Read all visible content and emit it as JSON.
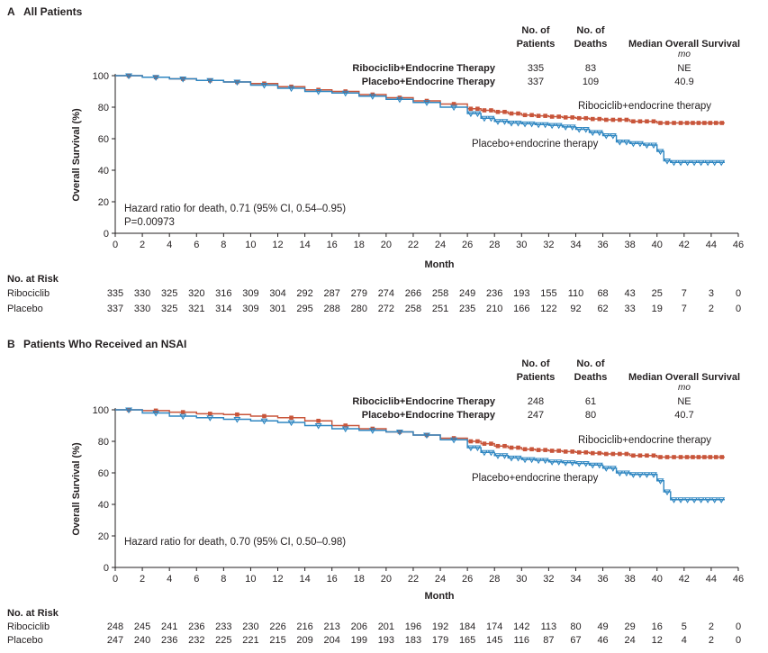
{
  "chart_data": [
    {
      "type": "line",
      "panel_letter": "A",
      "title": "All Patients",
      "xlabel": "Month",
      "ylabel": "Overall Survival (%)",
      "xlim": [
        0,
        46
      ],
      "ylim": [
        0,
        100
      ],
      "x_ticks": [
        0,
        2,
        4,
        6,
        8,
        10,
        12,
        14,
        16,
        18,
        20,
        22,
        24,
        26,
        28,
        30,
        32,
        34,
        36,
        38,
        40,
        42,
        44,
        46
      ],
      "y_ticks": [
        0,
        20,
        40,
        60,
        80,
        100
      ],
      "grid": false,
      "table_headers": {
        "patients": [
          "No. of",
          "Patients"
        ],
        "deaths": [
          "No. of",
          "Deaths"
        ],
        "median": "Median Overall Survival",
        "median_unit": "mo"
      },
      "table_rows": [
        {
          "label": "Ribociclib+Endocrine Therapy",
          "patients": "335",
          "deaths": "83",
          "median": "NE"
        },
        {
          "label": "Placebo+Endocrine Therapy",
          "patients": "337",
          "deaths": "109",
          "median": "40.9"
        }
      ],
      "series": [
        {
          "name": "Ribociclib+endocrine therapy",
          "color": "#c8553a",
          "marker": "square",
          "x": [
            0,
            2,
            4,
            6,
            8,
            10,
            12,
            14,
            16,
            18,
            20,
            22,
            24,
            26,
            27,
            28,
            29,
            30,
            31,
            32,
            33,
            34,
            35,
            36,
            38,
            40,
            42,
            45
          ],
          "y": [
            100,
            99,
            98,
            97,
            96,
            95,
            93,
            91,
            90,
            88,
            86,
            84,
            82,
            79,
            78,
            77,
            76,
            75,
            74.5,
            74,
            73.5,
            73,
            72.5,
            72,
            71,
            70,
            70,
            70
          ]
        },
        {
          "name": "Placebo+endocrine therapy",
          "color": "#2e86c1",
          "marker": "triangle-down",
          "x": [
            0,
            2,
            4,
            6,
            8,
            10,
            12,
            14,
            16,
            18,
            20,
            22,
            24,
            26,
            27,
            28,
            29,
            30,
            31,
            32,
            33,
            34,
            35,
            36,
            37,
            38,
            39,
            40,
            40.5,
            41,
            42,
            44,
            45
          ],
          "y": [
            100,
            99,
            98,
            97,
            96,
            94,
            92,
            90,
            89,
            87,
            85,
            83,
            80,
            76,
            73,
            71,
            70,
            69.5,
            69,
            68.5,
            67.5,
            66,
            64,
            62,
            58,
            57,
            56,
            52,
            46,
            45,
            45,
            45,
            45
          ]
        }
      ],
      "annotations": [
        "Hazard ratio for death, 0.71 (95% CI, 0.54–0.95)",
        "P=0.00973"
      ],
      "risk_table": {
        "title": "No. at Risk",
        "rows": [
          {
            "label": "Ribociclib",
            "values": [
              "335",
              "330",
              "325",
              "320",
              "316",
              "309",
              "304",
              "292",
              "287",
              "279",
              "274",
              "266",
              "258",
              "249",
              "236",
              "193",
              "155",
              "110",
              "68",
              "43",
              "25",
              "7",
              "3",
              "0"
            ]
          },
          {
            "label": "Placebo",
            "values": [
              "337",
              "330",
              "325",
              "321",
              "314",
              "309",
              "301",
              "295",
              "288",
              "280",
              "272",
              "258",
              "251",
              "235",
              "210",
              "166",
              "122",
              "92",
              "62",
              "33",
              "19",
              "7",
              "2",
              "0"
            ]
          }
        ]
      }
    },
    {
      "type": "line",
      "panel_letter": "B",
      "title": "Patients Who Received an NSAI",
      "xlabel": "Month",
      "ylabel": "Overall Survival (%)",
      "xlim": [
        0,
        46
      ],
      "ylim": [
        0,
        100
      ],
      "x_ticks": [
        0,
        2,
        4,
        6,
        8,
        10,
        12,
        14,
        16,
        18,
        20,
        22,
        24,
        26,
        28,
        30,
        32,
        34,
        36,
        38,
        40,
        42,
        44,
        46
      ],
      "y_ticks": [
        0,
        20,
        40,
        60,
        80,
        100
      ],
      "grid": false,
      "table_headers": {
        "patients": [
          "No. of",
          "Patients"
        ],
        "deaths": [
          "No. of",
          "Deaths"
        ],
        "median": "Median Overall Survival",
        "median_unit": "mo"
      },
      "table_rows": [
        {
          "label": "Ribociclib+Endocrine Therapy",
          "patients": "248",
          "deaths": "61",
          "median": "NE"
        },
        {
          "label": "Placebo+Endocrine Therapy",
          "patients": "247",
          "deaths": "80",
          "median": "40.7"
        }
      ],
      "series": [
        {
          "name": "Ribociclib+endocrine therapy",
          "color": "#c8553a",
          "marker": "square",
          "x": [
            0,
            2,
            4,
            6,
            8,
            10,
            12,
            14,
            16,
            18,
            20,
            22,
            24,
            26,
            27,
            28,
            29,
            30,
            31,
            32,
            33,
            34,
            35,
            36,
            38,
            40,
            42,
            45
          ],
          "y": [
            100,
            99.5,
            98.5,
            97.5,
            97,
            96,
            95,
            93,
            90,
            88,
            86,
            84,
            82,
            80,
            78.5,
            77,
            76,
            75,
            74.5,
            74,
            73.5,
            73,
            72.5,
            72,
            71,
            70,
            70,
            70
          ]
        },
        {
          "name": "Placebo+endocrine therapy",
          "color": "#2e86c1",
          "marker": "triangle-down",
          "x": [
            0,
            2,
            4,
            6,
            8,
            10,
            12,
            14,
            16,
            18,
            20,
            22,
            24,
            26,
            27,
            28,
            29,
            30,
            31,
            32,
            33,
            34,
            35,
            36,
            37,
            38,
            39,
            40,
            40.5,
            41,
            42,
            44,
            45
          ],
          "y": [
            100,
            98,
            96,
            95,
            94,
            93,
            92,
            90,
            88,
            87,
            86,
            84,
            81,
            76,
            73,
            71,
            69.5,
            68.5,
            68,
            67,
            66.5,
            66,
            65,
            63,
            60,
            59,
            59,
            55,
            48,
            43,
            43,
            43,
            43
          ]
        }
      ],
      "annotations": [
        "Hazard ratio for death, 0.70 (95% CI, 0.50–0.98)"
      ],
      "risk_table": {
        "title": "No. at Risk",
        "rows": [
          {
            "label": "Ribociclib",
            "values": [
              "248",
              "245",
              "241",
              "236",
              "233",
              "230",
              "226",
              "216",
              "213",
              "206",
              "201",
              "196",
              "192",
              "184",
              "174",
              "142",
              "113",
              "80",
              "49",
              "29",
              "16",
              "5",
              "2",
              "0"
            ]
          },
          {
            "label": "Placebo",
            "values": [
              "247",
              "240",
              "236",
              "232",
              "225",
              "221",
              "215",
              "209",
              "204",
              "199",
              "193",
              "183",
              "179",
              "165",
              "145",
              "116",
              "87",
              "67",
              "46",
              "24",
              "12",
              "4",
              "2",
              "0"
            ]
          }
        ]
      }
    }
  ]
}
